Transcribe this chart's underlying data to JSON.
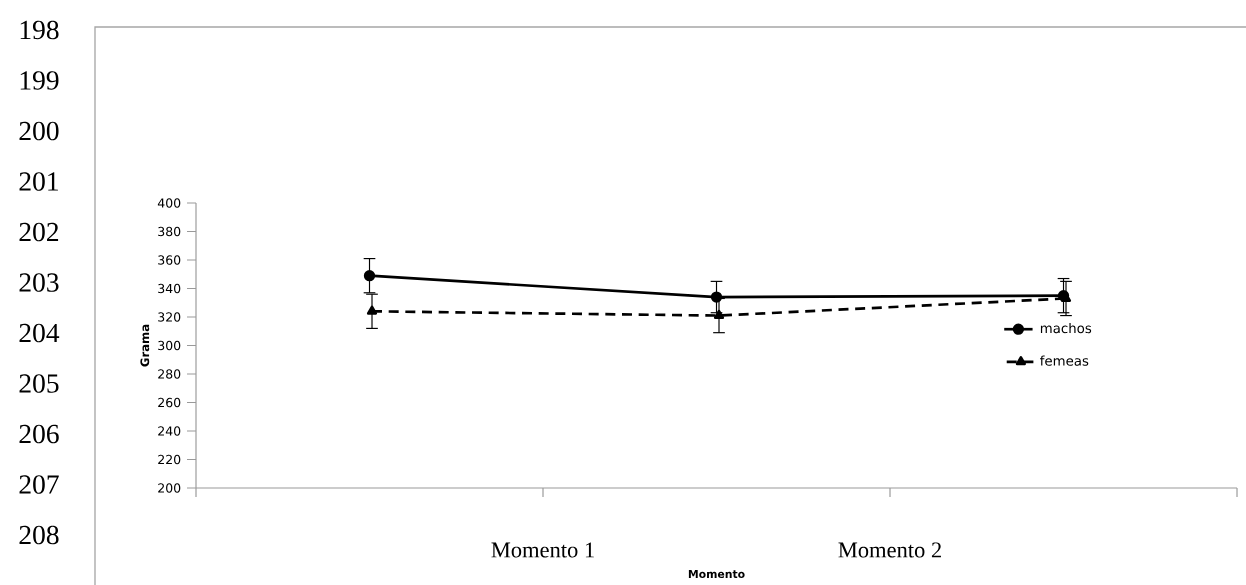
{
  "chart_data": {
    "type": "line",
    "ylabel": "Grama",
    "categories": [
      null,
      null,
      null
    ],
    "series": [
      {
        "name": "machos",
        "color": "#000000",
        "marker": "circle",
        "line_style": "solid",
        "values": [
          349,
          334,
          335
        ],
        "errors": [
          12,
          11,
          12
        ]
      },
      {
        "name": "femeas",
        "color": "#000000",
        "marker": "triangle",
        "line_style": "dashed",
        "values": [
          324,
          321,
          333
        ],
        "errors": [
          12,
          12,
          12
        ]
      }
    ],
    "ylim": [
      200,
      400
    ],
    "yticks": [
      200,
      220,
      240,
      260,
      280,
      300,
      320,
      340,
      360,
      380,
      400
    ],
    "grid": false,
    "legend": "right",
    "annotations": [
      "198",
      "199",
      "200",
      "201",
      "202",
      "203",
      "204",
      "205",
      "206",
      "207",
      "208",
      "Momento 1",
      "Momento 2",
      "Momento"
    ]
  }
}
